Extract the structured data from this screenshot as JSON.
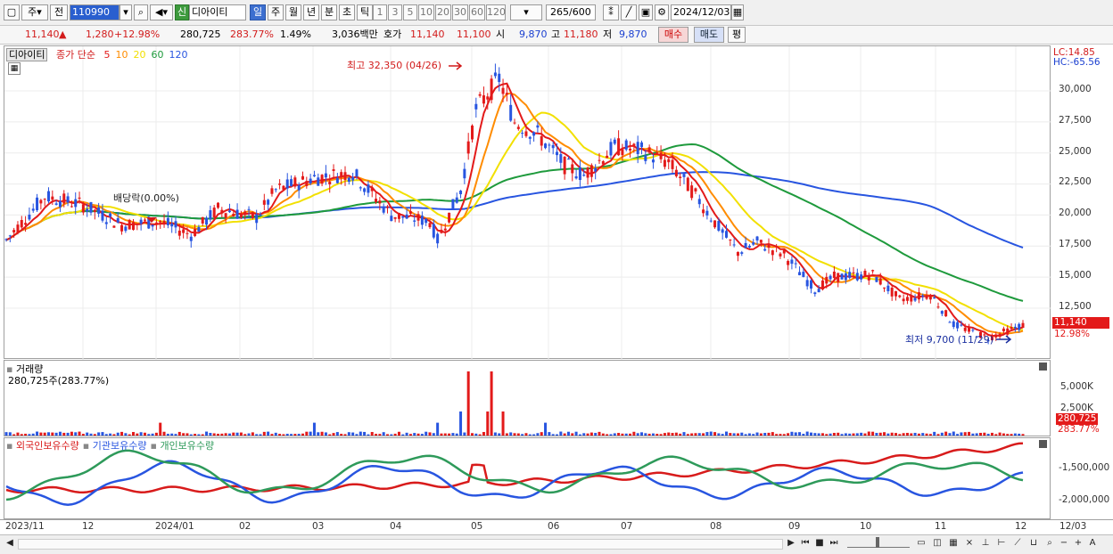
{
  "toolbar": {
    "period_type": "주",
    "prev_label": "전",
    "code": "110990",
    "new_badge": "신",
    "stock_name": "디아이티",
    "periods": [
      "일",
      "주",
      "월",
      "년",
      "분",
      "초",
      "틱"
    ],
    "active_period": "일",
    "ticks": [
      "1",
      "3",
      "5",
      "10",
      "20",
      "30",
      "60",
      "120"
    ],
    "count": "265",
    "count_total": "/600",
    "date": "2024/12/03"
  },
  "quote": {
    "price": "11,140",
    "change": "1,280",
    "change_pct": "+12.98%",
    "volume": "280,725",
    "volume_ratio": "283.77%",
    "turnover": "1.49%",
    "amount": "3,036백만",
    "bid_label": "호가",
    "ask": "11,140",
    "bid": "11,100",
    "open_label": "시",
    "open": "9,870",
    "high_label": "고",
    "high": "11,180",
    "low_label": "저",
    "low": "9,870",
    "buy_label": "매수",
    "sell_label": "매도",
    "avg_label": "평"
  },
  "price_panel": {
    "stock_label": "디아이티",
    "ma_label": "종가 단순",
    "ma_periods": [
      {
        "label": "5",
        "color": "#e31a1a"
      },
      {
        "label": "10",
        "color": "#ff8c00"
      },
      {
        "label": "20",
        "color": "#f2e000"
      },
      {
        "label": "60",
        "color": "#1e9a3c"
      },
      {
        "label": "120",
        "color": "#2855e0"
      }
    ],
    "lc": "LC:14.85",
    "hc": "HC:-65.56",
    "high_note": "최고 32,350 (04/26)",
    "low_note": "최저 9,700 (11/29)",
    "dividend_note": "배당락(0.00%)",
    "last_price": "11,140",
    "last_pct": "12.98%",
    "y_ticks": [
      "30,000",
      "27,500",
      "25,000",
      "22,500",
      "20,000",
      "17,500",
      "15,000",
      "12,500"
    ]
  },
  "volume_panel": {
    "title": "거래량",
    "value": "280,725주(283.77%)",
    "y_ticks": [
      "5,000K",
      "2,500K"
    ],
    "last_volume": "280,725",
    "last_pct": "283.77%"
  },
  "holdings_panel": {
    "series": [
      {
        "label": "외국인보유수량",
        "color": "#d81b1b"
      },
      {
        "label": "기관보유수량",
        "color": "#2855e0"
      },
      {
        "label": "개인보유수량",
        "color": "#2e9a5a"
      }
    ],
    "y_ticks": [
      "-1,500,000",
      "-2,000,000"
    ]
  },
  "x_axis": {
    "labels": [
      {
        "t": "2023/11"
      },
      {
        "t": "12"
      },
      {
        "t": "2024/01"
      },
      {
        "t": "02"
      },
      {
        "t": "03"
      },
      {
        "t": "04"
      },
      {
        "t": "05"
      },
      {
        "t": "06"
      },
      {
        "t": "07"
      },
      {
        "t": "08"
      },
      {
        "t": "09"
      },
      {
        "t": "10"
      },
      {
        "t": "11"
      },
      {
        "t": "12"
      }
    ],
    "right_label": "12/03"
  },
  "colors": {
    "up": "#e31a1a",
    "down": "#2855e0"
  }
}
